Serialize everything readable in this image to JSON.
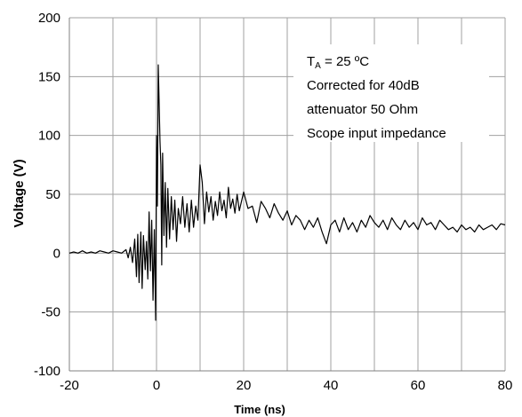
{
  "chart_data": {
    "type": "line",
    "title": "",
    "xlabel": "Time  (ns)",
    "ylabel": "Voltage (V)",
    "xlim": [
      -20,
      80
    ],
    "ylim": [
      -100,
      200
    ],
    "xticks": [
      -20,
      0,
      20,
      40,
      60,
      80
    ],
    "yticks": [
      -100,
      -50,
      0,
      50,
      100,
      150,
      200
    ],
    "xtick_labels": [
      "-20",
      "0",
      "20",
      "40",
      "60",
      "80"
    ],
    "ytick_labels": [
      "-100",
      "-50",
      "0",
      "50",
      "100",
      "150",
      "200"
    ],
    "grid": true,
    "legend": "none",
    "annotation": {
      "line1_main": "T",
      "line1_sub": "A",
      "line1_rest": " = 25 ºC",
      "line2": "Corrected for 40dB",
      "line3": "attenuator 50 Ohm",
      "line4": "Scope input impedance"
    },
    "series": [
      {
        "color": "#000000",
        "x": [
          -20,
          -19,
          -18,
          -17,
          -16,
          -15,
          -14,
          -13,
          -12,
          -11,
          -10,
          -9,
          -8,
          -7,
          -6.5,
          -6,
          -5.5,
          -5,
          -4.6,
          -4.3,
          -4,
          -3.6,
          -3.3,
          -3,
          -2.6,
          -2.3,
          -2,
          -1.7,
          -1.4,
          -1.1,
          -0.8,
          -0.5,
          -0.2,
          0,
          0.2,
          0.4,
          0.6,
          0.8,
          1.0,
          1.2,
          1.4,
          1.7,
          2.0,
          2.3,
          2.6,
          3.0,
          3.4,
          3.8,
          4.2,
          4.6,
          5.0,
          5.5,
          6.0,
          6.5,
          7.0,
          7.5,
          8.0,
          8.5,
          9.0,
          9.5,
          10.0,
          10.5,
          11.0,
          11.5,
          12.0,
          12.5,
          13.0,
          13.5,
          14.0,
          14.5,
          15.0,
          15.5,
          16.0,
          16.5,
          17.0,
          17.5,
          18.0,
          18.5,
          19.0,
          19.5,
          20.0,
          21.0,
          22.0,
          23.0,
          24.0,
          25.0,
          26.0,
          27.0,
          28.0,
          29.0,
          30.0,
          31.0,
          32.0,
          33.0,
          34.0,
          35.0,
          36.0,
          37.0,
          38.0,
          39.0,
          40.0,
          41.0,
          42.0,
          43.0,
          44.0,
          45.0,
          46.0,
          47.0,
          48.0,
          49.0,
          50.0,
          51.0,
          52.0,
          53.0,
          54.0,
          55.0,
          56.0,
          57.0,
          58.0,
          59.0,
          60.0,
          61.0,
          62.0,
          63.0,
          64.0,
          65.0,
          66.0,
          67.0,
          68.0,
          69.0,
          70.0,
          71.0,
          72.0,
          73.0,
          74.0,
          75.0,
          76.0,
          77.0,
          78.0,
          79.0,
          80.0
        ],
        "y": [
          0,
          1,
          0,
          2,
          0,
          1,
          0,
          2,
          1,
          0,
          2,
          1,
          0,
          3,
          -4,
          5,
          -8,
          12,
          -20,
          16,
          -25,
          18,
          -30,
          15,
          -14,
          10,
          -22,
          35,
          -15,
          28,
          -40,
          20,
          -57,
          100,
          40,
          160,
          128,
          95,
          75,
          -10,
          85,
          15,
          60,
          5,
          55,
          12,
          48,
          20,
          45,
          10,
          38,
          25,
          48,
          22,
          42,
          18,
          45,
          22,
          40,
          28,
          75,
          60,
          25,
          52,
          35,
          48,
          28,
          44,
          32,
          52,
          36,
          45,
          30,
          56,
          38,
          46,
          34,
          50,
          36,
          44,
          52,
          38,
          40,
          26,
          44,
          38,
          30,
          42,
          34,
          28,
          36,
          24,
          32,
          28,
          20,
          28,
          22,
          30,
          18,
          8,
          24,
          28,
          18,
          30,
          20,
          26,
          18,
          28,
          22,
          32,
          26,
          22,
          28,
          20,
          30,
          24,
          20,
          28,
          22,
          26,
          20,
          30,
          24,
          26,
          20,
          28,
          24,
          20,
          22,
          18,
          24,
          20,
          22,
          18,
          24,
          20,
          22,
          24,
          20,
          25,
          24
        ]
      }
    ]
  }
}
